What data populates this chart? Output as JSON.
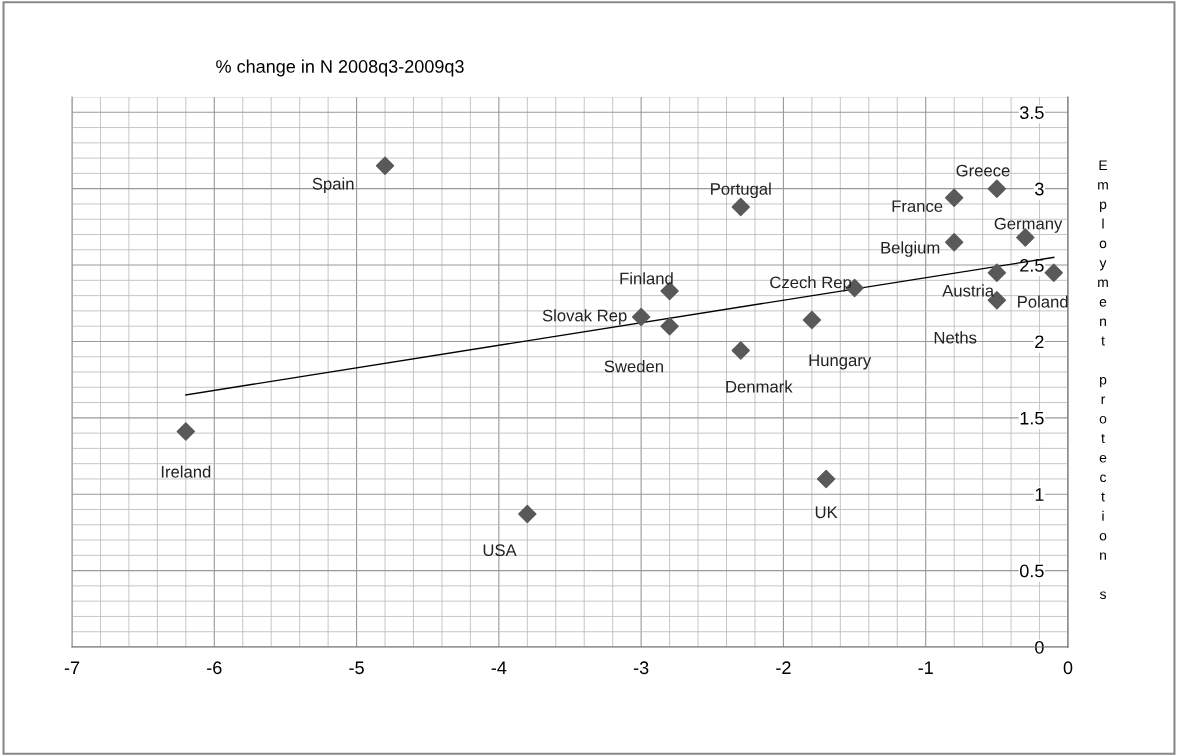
{
  "chart_data": {
    "type": "scatter",
    "title": "% change in N 2008q3-2009q3",
    "ylabel": "Employment protection s",
    "series": [
      {
        "color": "#595959",
        "marker": "diamond",
        "x": [
          -4.8,
          -2.3,
          -0.5,
          -0.8,
          -0.3,
          -0.8,
          -0.5,
          -0.1,
          -0.5,
          -1.5,
          -2.8,
          -3.0,
          -2.8,
          -1.8,
          -2.3,
          -6.2,
          -3.8,
          -1.7
        ],
        "values": [
          3.15,
          2.88,
          3.0,
          2.94,
          2.68,
          2.65,
          2.45,
          2.45,
          2.27,
          2.35,
          2.33,
          2.16,
          2.1,
          2.14,
          1.94,
          1.41,
          0.87,
          1.1
        ]
      },
      {
        "type": "line",
        "color": "#000000",
        "marker": "none",
        "x": [
          -6.2,
          -0.1
        ],
        "values": [
          1.65,
          2.55
        ]
      }
    ],
    "annotations": [
      {
        "text": "Spain",
        "x": -4.8,
        "y": 3.15
      },
      {
        "text": "Portugal",
        "x": -2.3,
        "y": 2.88
      },
      {
        "text": "Greece",
        "x": -0.5,
        "y": 3.0
      },
      {
        "text": "France",
        "x": -0.8,
        "y": 2.94
      },
      {
        "text": "Germany",
        "x": -0.3,
        "y": 2.68
      },
      {
        "text": "Belgium",
        "x": -0.8,
        "y": 2.65
      },
      {
        "text": "Austria",
        "x": -0.5,
        "y": 2.45
      },
      {
        "text": "Poland",
        "x": -0.1,
        "y": 2.45
      },
      {
        "text": "Neths",
        "x": -0.5,
        "y": 2.27
      },
      {
        "text": "Czech Rep",
        "x": -1.5,
        "y": 2.35
      },
      {
        "text": "Finland",
        "x": -2.8,
        "y": 2.33
      },
      {
        "text": "Slovak Rep",
        "x": -3.0,
        "y": 2.16
      },
      {
        "text": "Sweden",
        "x": -2.8,
        "y": 2.1
      },
      {
        "text": "Hungary",
        "x": -1.8,
        "y": 2.14
      },
      {
        "text": "Denmark",
        "x": -2.3,
        "y": 1.94
      },
      {
        "text": "Ireland",
        "x": -6.2,
        "y": 1.41
      },
      {
        "text": "USA",
        "x": -3.8,
        "y": 0.87
      },
      {
        "text": "UK",
        "x": -1.7,
        "y": 1.1
      }
    ],
    "xlim": [
      -7,
      0
    ],
    "xticks": [
      -7,
      -6,
      -5,
      -4,
      -3,
      -2,
      -1,
      0
    ],
    "ylim": [
      0,
      3.6
    ],
    "yticks": [
      0,
      0.5,
      1,
      1.5,
      2,
      2.5,
      3,
      3.5
    ],
    "grid": true,
    "legend": false
  }
}
